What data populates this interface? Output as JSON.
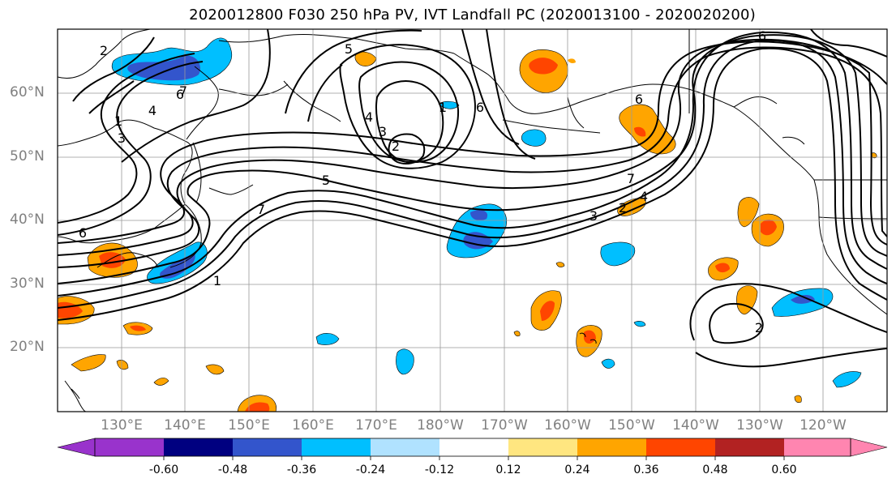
{
  "title": "2020012800 F030 250 hPa PV, IVT Landfall PC (2020013100 - 2020020200)",
  "lat_labels": [
    "60°N",
    "50°N",
    "40°N",
    "30°N",
    "20°N"
  ],
  "lon_labels": [
    "130°E",
    "140°E",
    "150°E",
    "160°E",
    "170°E",
    "180°W",
    "170°W",
    "160°W",
    "150°W",
    "140°W",
    "130°W",
    "120°W"
  ],
  "colorbar": {
    "ticks": [
      "-0.60",
      "-0.48",
      "-0.36",
      "-0.24",
      "-0.12",
      "0.12",
      "0.24",
      "0.36",
      "0.48",
      "0.60"
    ],
    "colors": [
      "#9933cc",
      "#000080",
      "#3355cc",
      "#00bfff",
      "#b0e2ff",
      "#ffffff",
      "#ffe680",
      "#ffa500",
      "#ff4500",
      "#b22222",
      "#ff85b0"
    ]
  },
  "contour_labels": [
    "2",
    "1",
    "6",
    "4",
    "3",
    "6",
    "5",
    "3",
    "2",
    "1",
    "4",
    "7",
    "5",
    "7",
    "3",
    "4",
    "6",
    "1",
    "2",
    "6",
    "6",
    "2",
    "7"
  ],
  "colors": {
    "land_line": "#000000",
    "grid": "#999999",
    "axis_text": "#808080"
  }
}
